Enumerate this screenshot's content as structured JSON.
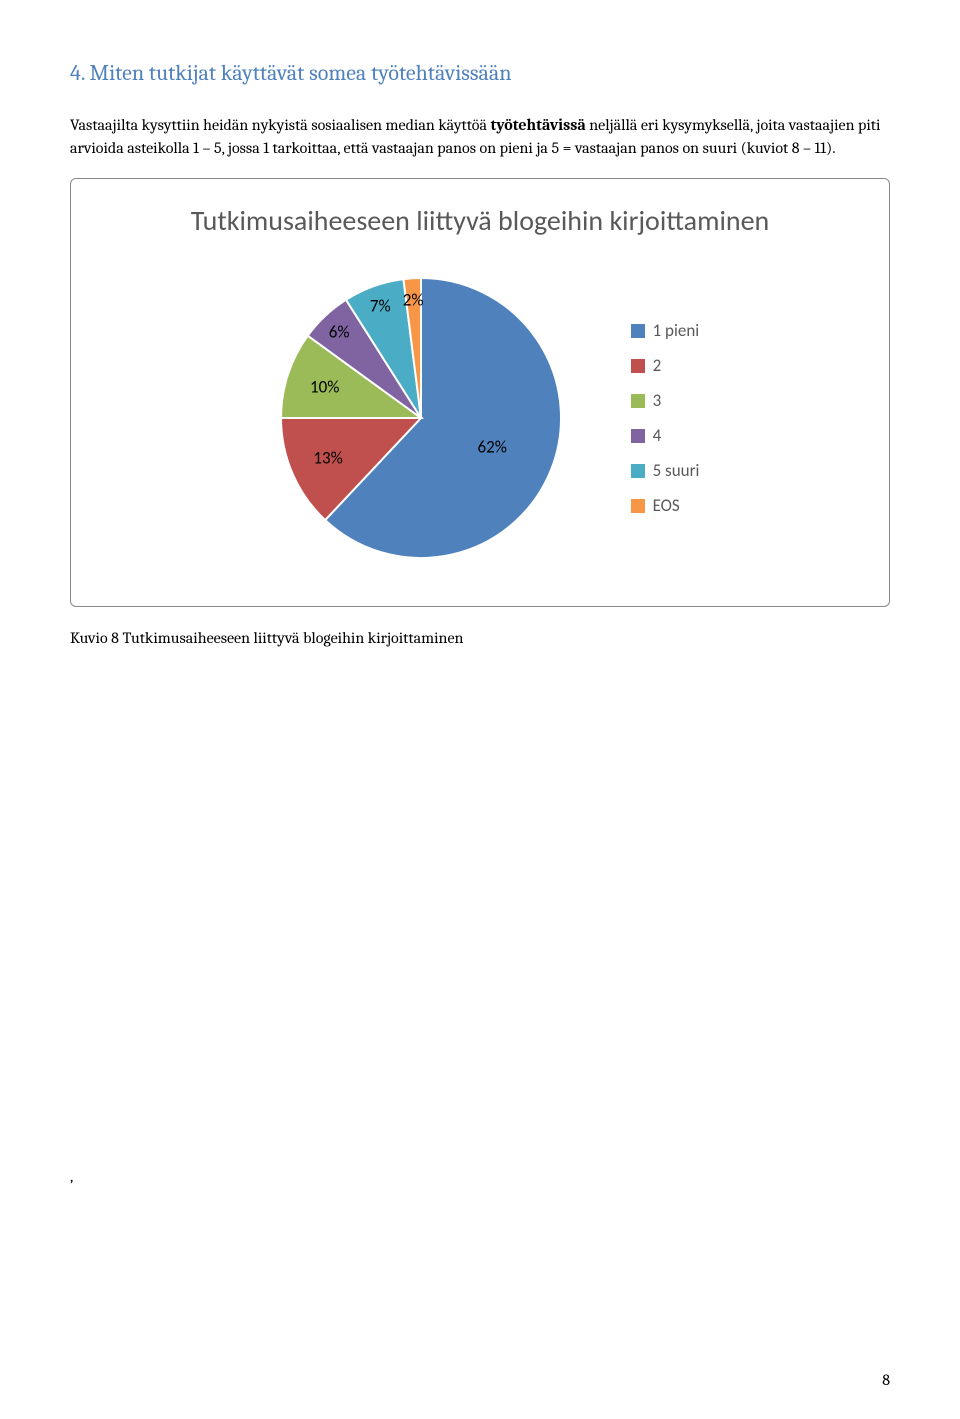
{
  "heading": {
    "text": "4. Miten tutkijat käyttävät somea työtehtävissään",
    "color": "#4f81bd"
  },
  "paragraph": "Vastaajilta kysyttiin heidän nykyistä sosiaalisen median käyttöä työtehtävissä neljällä eri kysymyksellä, joita vastaajien piti arvioida asteikolla 1 – 5, jossa 1 tarkoittaa, että vastaajan panos on  pieni ja 5 = vastaajan panos on suuri (kuviot 8 – 11).",
  "bold_phrase": "työtehtävissä",
  "chart": {
    "type": "pie",
    "title": "Tutkimusaiheeseen liittyvä blogeihin kirjoittaminen",
    "slices": [
      {
        "label": "62%",
        "value": 62,
        "color": "#4f81bd",
        "legend": "1 pieni"
      },
      {
        "label": "13%",
        "value": 13,
        "color": "#c0504d",
        "legend": "2"
      },
      {
        "label": "10%",
        "value": 10,
        "color": "#9bbb59",
        "legend": "3"
      },
      {
        "label": "6%",
        "value": 6,
        "color": "#8064a2",
        "legend": "4"
      },
      {
        "label": "7%",
        "value": 7,
        "color": "#4bacc6",
        "legend": "5 suuri"
      },
      {
        "label": "2%",
        "value": 2,
        "color": "#f79646",
        "legend": "EOS"
      }
    ],
    "title_fontsize": 28,
    "title_color": "#595959",
    "label_fontsize": 17,
    "legend_fontsize": 17,
    "legend_color": "#595959",
    "slice_stroke": "#ffffff",
    "slice_stroke_width": 2,
    "background_color": "#ffffff",
    "border_color": "#888888",
    "pie_radius": 140,
    "pie_size": 320
  },
  "caption": "Kuvio 8 Tutkimusaiheeseen liittyvä blogeihin kirjoittaminen",
  "trailing": ",",
  "page_number": "8"
}
